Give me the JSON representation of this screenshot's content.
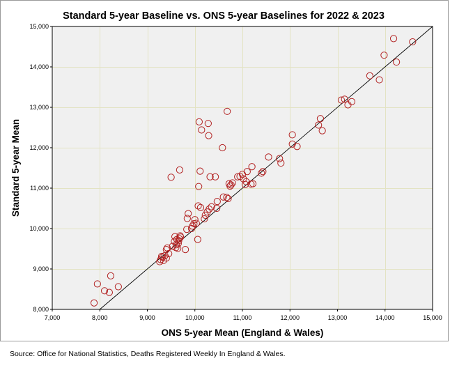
{
  "chart_data": {
    "type": "scatter",
    "title": "Standard 5-year Baseline vs. ONS 5-year Baselines for 2022 & 2023",
    "xlabel": "ONS 5-year Mean (England & Wales)",
    "ylabel": "Standard 5-year Mean",
    "xlim": [
      7000,
      15000
    ],
    "ylim": [
      8000,
      15000
    ],
    "x_ticks": [
      7000,
      8000,
      9000,
      10000,
      11000,
      12000,
      13000,
      14000,
      15000
    ],
    "x_tick_labels": [
      "7,000",
      "8,000",
      "9,000",
      "10,000",
      "11,000",
      "12,000",
      "13,000",
      "14,000",
      "15,000"
    ],
    "y_ticks": [
      8000,
      9000,
      10000,
      11000,
      12000,
      13000,
      14000,
      15000
    ],
    "y_tick_labels": [
      "8,000",
      "9,000",
      "10,000",
      "11,000",
      "12,000",
      "13,000",
      "14,000",
      "15,000"
    ],
    "grid": true,
    "reference_line": {
      "label": "y = x",
      "from": [
        8000,
        8000
      ],
      "to": [
        15000,
        15000
      ]
    },
    "colors": {
      "plot_background": "#f0f0f0",
      "gridline": "#e3e3c3",
      "marker": "#b22222",
      "line": "#000000"
    },
    "points": [
      [
        7880,
        8160
      ],
      [
        7950,
        8630
      ],
      [
        8100,
        8460
      ],
      [
        8200,
        8420
      ],
      [
        8230,
        8830
      ],
      [
        8390,
        8560
      ],
      [
        9260,
        9180
      ],
      [
        9280,
        9230
      ],
      [
        9300,
        9310
      ],
      [
        9320,
        9290
      ],
      [
        9340,
        9210
      ],
      [
        9370,
        9330
      ],
      [
        9400,
        9270
      ],
      [
        9400,
        9480
      ],
      [
        9420,
        9520
      ],
      [
        9450,
        9380
      ],
      [
        9500,
        11270
      ],
      [
        9530,
        9560
      ],
      [
        9570,
        9680
      ],
      [
        9580,
        9800
      ],
      [
        9600,
        9530
      ],
      [
        9610,
        9600
      ],
      [
        9620,
        9730
      ],
      [
        9640,
        9510
      ],
      [
        9650,
        9630
      ],
      [
        9660,
        9700
      ],
      [
        9670,
        9750
      ],
      [
        9680,
        11450
      ],
      [
        9690,
        9820
      ],
      [
        9700,
        9790
      ],
      [
        9800,
        9480
      ],
      [
        9830,
        9980
      ],
      [
        9840,
        10250
      ],
      [
        9860,
        10370
      ],
      [
        9930,
        10000
      ],
      [
        9950,
        10060
      ],
      [
        9980,
        10120
      ],
      [
        10000,
        10220
      ],
      [
        10030,
        10130
      ],
      [
        10060,
        9730
      ],
      [
        10070,
        10560
      ],
      [
        10080,
        11040
      ],
      [
        10090,
        12640
      ],
      [
        10110,
        11420
      ],
      [
        10120,
        10520
      ],
      [
        10140,
        12440
      ],
      [
        10200,
        10240
      ],
      [
        10220,
        10330
      ],
      [
        10260,
        10410
      ],
      [
        10280,
        12600
      ],
      [
        10290,
        12300
      ],
      [
        10300,
        10480
      ],
      [
        10320,
        11280
      ],
      [
        10350,
        10540
      ],
      [
        10430,
        11280
      ],
      [
        10460,
        10500
      ],
      [
        10470,
        10670
      ],
      [
        10580,
        12000
      ],
      [
        10600,
        10780
      ],
      [
        10670,
        10770
      ],
      [
        10680,
        12900
      ],
      [
        10700,
        10740
      ],
      [
        10720,
        11110
      ],
      [
        10740,
        11050
      ],
      [
        10760,
        11080
      ],
      [
        10790,
        11130
      ],
      [
        10900,
        11280
      ],
      [
        10950,
        11290
      ],
      [
        11000,
        11340
      ],
      [
        11020,
        11230
      ],
      [
        11060,
        11090
      ],
      [
        11080,
        11160
      ],
      [
        11100,
        11410
      ],
      [
        11180,
        11100
      ],
      [
        11200,
        11530
      ],
      [
        11220,
        11110
      ],
      [
        11400,
        11370
      ],
      [
        11430,
        11410
      ],
      [
        11550,
        11770
      ],
      [
        11780,
        11730
      ],
      [
        11810,
        11620
      ],
      [
        12050,
        12320
      ],
      [
        12050,
        12090
      ],
      [
        12150,
        12030
      ],
      [
        12600,
        12560
      ],
      [
        12640,
        12720
      ],
      [
        12680,
        12420
      ],
      [
        13080,
        13180
      ],
      [
        13150,
        13200
      ],
      [
        13220,
        13060
      ],
      [
        13300,
        13140
      ],
      [
        13680,
        13780
      ],
      [
        13880,
        13680
      ],
      [
        13980,
        14290
      ],
      [
        14180,
        14700
      ],
      [
        14240,
        14120
      ],
      [
        14580,
        14620
      ]
    ]
  },
  "source_note": "Source: Office for National Statistics, Deaths Registered Weekly In England & Wales."
}
